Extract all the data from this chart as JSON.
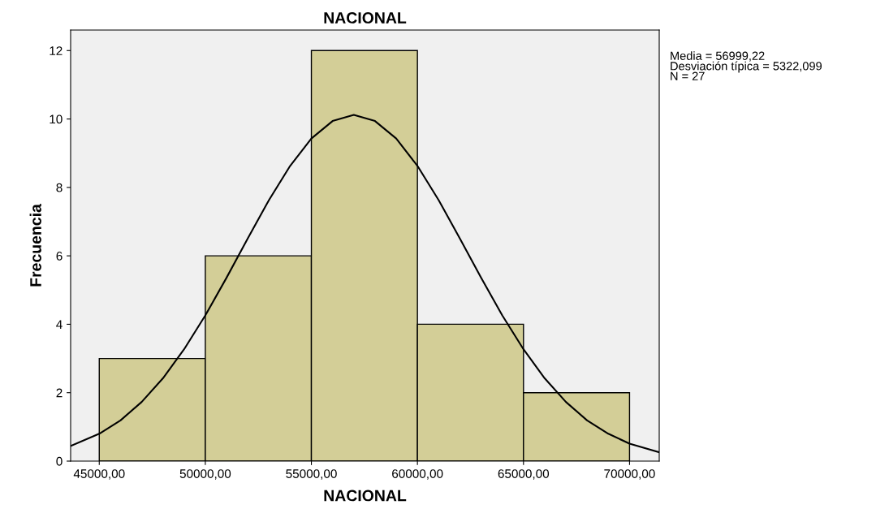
{
  "chart_data": {
    "type": "histogram",
    "title": "NACIONAL",
    "xlabel": "NACIONAL",
    "ylabel": "Frecuencia",
    "bins": [
      45000,
      50000,
      55000,
      60000,
      65000,
      70000
    ],
    "values": [
      3,
      6,
      12,
      4,
      2
    ],
    "color": "#d3ce97",
    "series": [
      {
        "type": "line",
        "color": "#000000",
        "x": [
          43650,
          45000,
          46000,
          47000,
          48000,
          49000,
          50000,
          51000,
          52000,
          53000,
          54000,
          55000,
          56000,
          57000,
          58000,
          59000,
          60000,
          61000,
          62000,
          63000,
          64000,
          65000,
          66000,
          67000,
          68000,
          69000,
          70000,
          71400
        ],
        "values": [
          0.44,
          0.8,
          1.19,
          1.73,
          2.42,
          3.27,
          4.26,
          5.36,
          6.51,
          7.63,
          8.63,
          9.43,
          9.94,
          10.12,
          9.94,
          9.43,
          8.63,
          7.63,
          6.51,
          5.36,
          4.26,
          3.27,
          2.42,
          1.73,
          1.19,
          0.8,
          0.51,
          0.26
        ]
      }
    ],
    "xlim": [
      43650,
      71400
    ],
    "ylim": [
      0,
      12.6
    ],
    "xticks": [
      {
        "value": 45000,
        "label": "45000,00"
      },
      {
        "value": 50000,
        "label": "50000,00"
      },
      {
        "value": 55000,
        "label": "55000,00"
      },
      {
        "value": 60000,
        "label": "60000,00"
      },
      {
        "value": 65000,
        "label": "65000,00"
      },
      {
        "value": 70000,
        "label": "70000,00"
      }
    ],
    "yticks": [
      0,
      2,
      4,
      6,
      8,
      10,
      12
    ],
    "annotations": [
      "Media = 56999,22",
      "Desviación típica = 5322,099",
      "N = 27"
    ],
    "grid": false,
    "legend": false
  }
}
